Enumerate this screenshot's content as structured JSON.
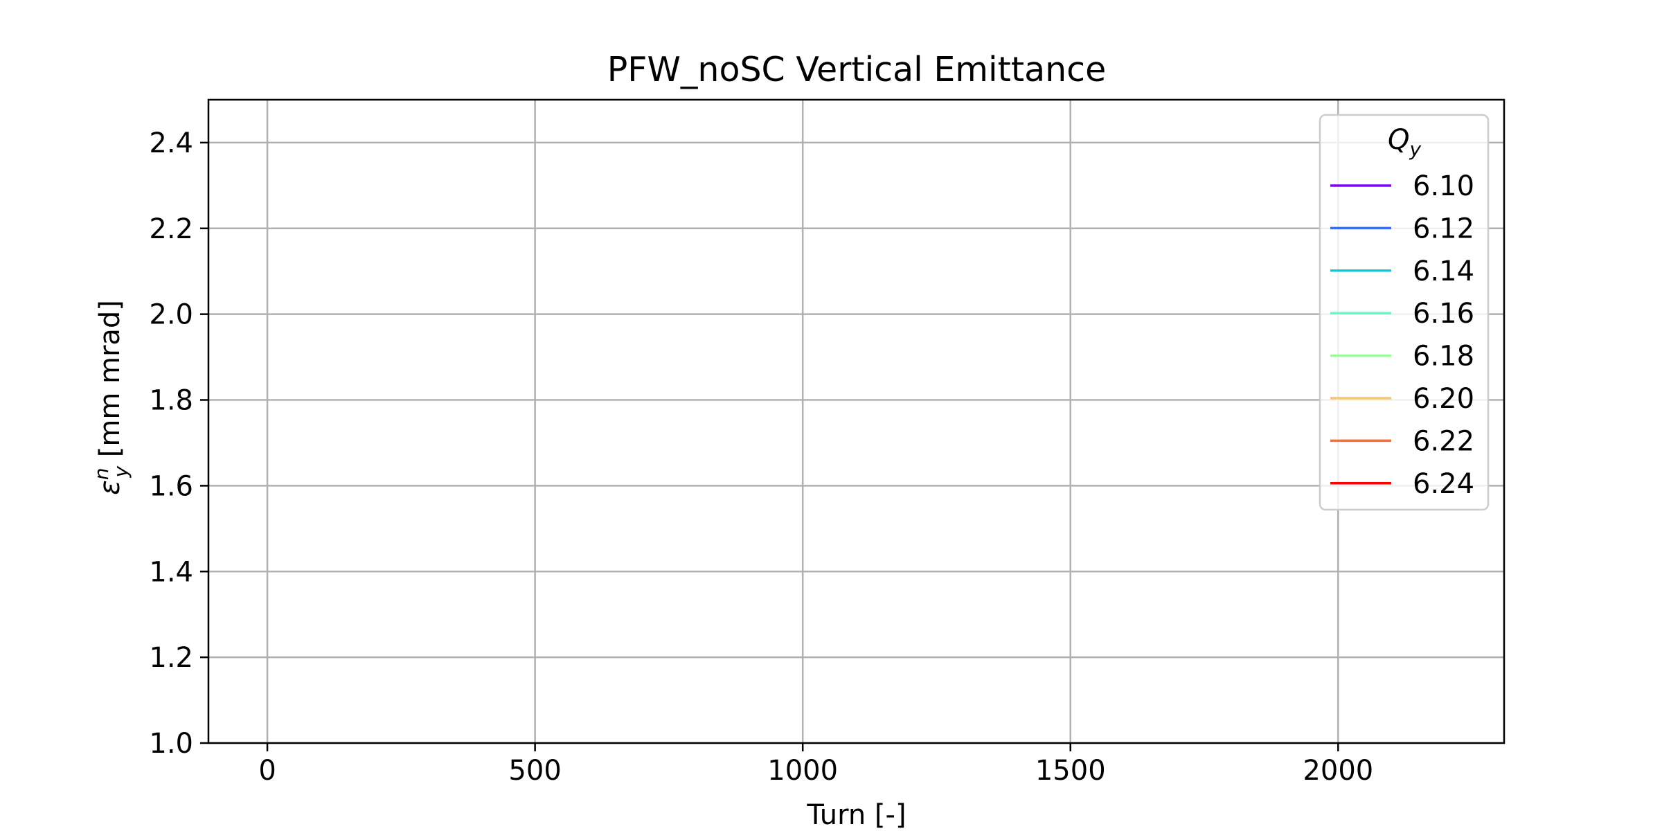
{
  "chart_data": {
    "type": "line",
    "title": "PFW_noSC Vertical Emittance",
    "xlabel": "Turn [-]",
    "ylabel_parts": {
      "symbol": "ε",
      "sup": "n",
      "sub": "y",
      "rest": " [mm mrad]"
    },
    "xlim": [
      -110,
      2310
    ],
    "ylim": [
      1.0,
      2.5
    ],
    "xticks": [
      0,
      500,
      1000,
      1500,
      2000
    ],
    "xtick_labels": [
      "0",
      "500",
      "1000",
      "1500",
      "2000"
    ],
    "yticks": [
      1.0,
      1.2,
      1.4,
      1.6,
      1.8,
      2.0,
      2.2,
      2.4
    ],
    "ytick_labels": [
      "1.0",
      "1.2",
      "1.4",
      "1.6",
      "1.8",
      "2.0",
      "2.2",
      "2.4"
    ],
    "grid": true,
    "legend": {
      "title_symbol": "Q",
      "title_sub": "y",
      "placement": "top-right"
    },
    "series": [
      {
        "name": "6.10",
        "color": "#8000ff",
        "x": [],
        "y": []
      },
      {
        "name": "6.12",
        "color": "#3a6cf4",
        "x": [],
        "y": []
      },
      {
        "name": "6.14",
        "color": "#12c8e6",
        "x": [],
        "y": []
      },
      {
        "name": "6.16",
        "color": "#62fbc4",
        "x": [],
        "y": []
      },
      {
        "name": "6.18",
        "color": "#9cfb9c",
        "x": [],
        "y": []
      },
      {
        "name": "6.20",
        "color": "#f6c46c",
        "x": [],
        "y": []
      },
      {
        "name": "6.22",
        "color": "#ff6a35",
        "x": [],
        "y": []
      },
      {
        "name": "6.24",
        "color": "#ff0000",
        "x": [],
        "y": []
      }
    ]
  }
}
